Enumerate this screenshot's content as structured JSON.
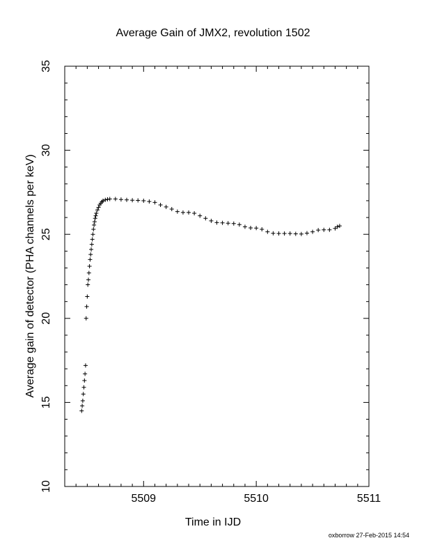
{
  "chart_data": {
    "type": "scatter",
    "title": "Average Gain of JMX2, revolution 1502",
    "xlabel": "Time in IJD",
    "ylabel": "Average gain of detector (PHA channels per keV)",
    "xlim": [
      5508.3,
      5511
    ],
    "ylim": [
      10,
      35
    ],
    "x_ticks": [
      5509,
      5510,
      5511
    ],
    "y_ticks": [
      10,
      15,
      20,
      25,
      30,
      35
    ],
    "grid": false,
    "marker": "plus",
    "series": [
      {
        "points": [
          [
            5508.45,
            14.5
          ],
          [
            5508.455,
            14.8
          ],
          [
            5508.46,
            15.1
          ],
          [
            5508.465,
            15.5
          ],
          [
            5508.47,
            15.9
          ],
          [
            5508.475,
            16.3
          ],
          [
            5508.48,
            16.7
          ],
          [
            5508.485,
            17.2
          ],
          [
            5508.49,
            20.0
          ],
          [
            5508.495,
            20.7
          ],
          [
            5508.5,
            21.3
          ],
          [
            5508.505,
            22.0
          ],
          [
            5508.51,
            22.3
          ],
          [
            5508.515,
            22.7
          ],
          [
            5508.52,
            23.1
          ],
          [
            5508.525,
            23.5
          ],
          [
            5508.53,
            23.8
          ],
          [
            5508.535,
            24.1
          ],
          [
            5508.54,
            24.4
          ],
          [
            5508.545,
            24.7
          ],
          [
            5508.55,
            25.0
          ],
          [
            5508.555,
            25.3
          ],
          [
            5508.56,
            25.55
          ],
          [
            5508.565,
            25.75
          ],
          [
            5508.57,
            25.95
          ],
          [
            5508.575,
            26.1
          ],
          [
            5508.58,
            26.25
          ],
          [
            5508.59,
            26.45
          ],
          [
            5508.6,
            26.6
          ],
          [
            5508.61,
            26.75
          ],
          [
            5508.62,
            26.85
          ],
          [
            5508.63,
            26.93
          ],
          [
            5508.64,
            27.0
          ],
          [
            5508.66,
            27.05
          ],
          [
            5508.68,
            27.08
          ],
          [
            5508.7,
            27.1
          ],
          [
            5508.75,
            27.1
          ],
          [
            5508.8,
            27.07
          ],
          [
            5508.85,
            27.05
          ],
          [
            5508.9,
            27.03
          ],
          [
            5508.95,
            27.02
          ],
          [
            5509.0,
            27.0
          ],
          [
            5509.05,
            26.95
          ],
          [
            5509.1,
            26.9
          ],
          [
            5509.15,
            26.75
          ],
          [
            5509.2,
            26.63
          ],
          [
            5509.25,
            26.5
          ],
          [
            5509.3,
            26.35
          ],
          [
            5509.35,
            26.3
          ],
          [
            5509.4,
            26.3
          ],
          [
            5509.45,
            26.25
          ],
          [
            5509.5,
            26.1
          ],
          [
            5509.55,
            25.95
          ],
          [
            5509.6,
            25.8
          ],
          [
            5509.65,
            25.7
          ],
          [
            5509.7,
            25.68
          ],
          [
            5509.75,
            25.66
          ],
          [
            5509.8,
            25.64
          ],
          [
            5509.85,
            25.58
          ],
          [
            5509.9,
            25.45
          ],
          [
            5509.95,
            25.38
          ],
          [
            5510.0,
            25.37
          ],
          [
            5510.05,
            25.3
          ],
          [
            5510.1,
            25.15
          ],
          [
            5510.15,
            25.06
          ],
          [
            5510.2,
            25.05
          ],
          [
            5510.25,
            25.05
          ],
          [
            5510.3,
            25.05
          ],
          [
            5510.35,
            25.03
          ],
          [
            5510.4,
            25.02
          ],
          [
            5510.45,
            25.07
          ],
          [
            5510.5,
            25.15
          ],
          [
            5510.55,
            25.25
          ],
          [
            5510.6,
            25.27
          ],
          [
            5510.65,
            25.27
          ],
          [
            5510.7,
            25.35
          ],
          [
            5510.72,
            25.45
          ],
          [
            5510.74,
            25.5
          ]
        ]
      }
    ]
  },
  "footer": "oxborrow 27-Feb-2015 14:54"
}
